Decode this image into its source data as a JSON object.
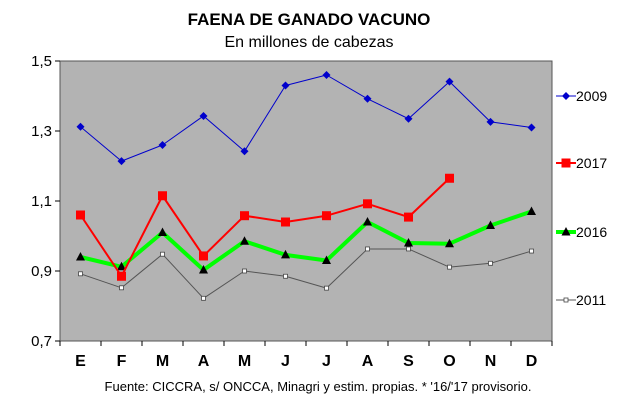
{
  "chart_data": {
    "type": "line",
    "title": "FAENA DE GANADO VACUNO",
    "subtitle": "En millones de cabezas",
    "source": "Fuente: CICCRA, s/ ONCCA, Minagri y estim. propias. * '16/'17 provisorio.",
    "categories": [
      "E",
      "F",
      "M",
      "A",
      "M",
      "J",
      "J",
      "A",
      "S",
      "O",
      "N",
      "D"
    ],
    "ylim": [
      0.7,
      1.5
    ],
    "yticks": [
      "0,7",
      "0,9",
      "1,1",
      "1,3",
      "1,5"
    ],
    "ytick_values": [
      0.7,
      0.9,
      1.1,
      1.3,
      1.5
    ],
    "grid": false,
    "legend_position": "right",
    "plot_background": "#b3b3b3",
    "series": [
      {
        "name": "2009",
        "color": "#0000cc",
        "marker": "diamond",
        "values": [
          1.312,
          1.214,
          1.26,
          1.343,
          1.242,
          1.43,
          1.46,
          1.392,
          1.335,
          1.441,
          1.326,
          1.31
        ]
      },
      {
        "name": "2017",
        "color": "#ff0000",
        "marker": "square",
        "values": [
          1.06,
          0.885,
          1.115,
          0.943,
          1.058,
          1.04,
          1.058,
          1.092,
          1.054,
          1.165,
          null,
          null
        ]
      },
      {
        "name": "2016",
        "color": "#00ff00",
        "marker": "triangle",
        "values": [
          0.94,
          0.912,
          1.01,
          0.903,
          0.985,
          0.946,
          0.93,
          1.04,
          0.98,
          0.978,
          1.03,
          1.07
        ]
      },
      {
        "name": "2011",
        "color": "#555555",
        "marker": "small-square",
        "values": [
          0.892,
          0.852,
          0.948,
          0.822,
          0.9,
          0.885,
          0.851,
          0.963,
          0.963,
          0.911,
          0.922,
          0.957
        ]
      }
    ]
  }
}
